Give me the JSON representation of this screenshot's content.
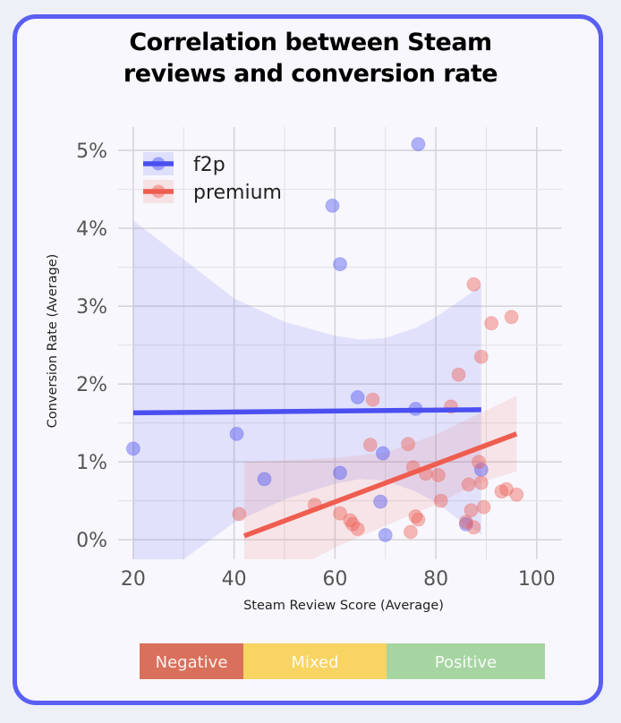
{
  "chart_data": {
    "type": "scatter",
    "title_lines": [
      "Correlation between Steam",
      "reviews and conversion rate"
    ],
    "xlabel": "Steam Review Score (Average)",
    "ylabel": "Conversion Rate (Average)",
    "xlim": [
      17,
      105
    ],
    "ylim": [
      -0.25,
      5.3
    ],
    "x_ticks": [
      20,
      40,
      60,
      80,
      100
    ],
    "x_tick_labels": [
      "20",
      "40",
      "60",
      "80",
      "100"
    ],
    "y_ticks": [
      0,
      1,
      2,
      3,
      4,
      5
    ],
    "y_tick_labels": [
      "0%",
      "1%",
      "2%",
      "3%",
      "4%",
      "5%"
    ],
    "grid": true,
    "legend": "top-left",
    "series": [
      {
        "name": "f2p",
        "color": "#4a4ff0",
        "points": [
          [
            20,
            1.17
          ],
          [
            40.5,
            1.36
          ],
          [
            46,
            0.78
          ],
          [
            59.5,
            4.29
          ],
          [
            61,
            3.54
          ],
          [
            61,
            0.86
          ],
          [
            64.5,
            1.83
          ],
          [
            69,
            0.49
          ],
          [
            69.5,
            1.11
          ],
          [
            70,
            0.06
          ],
          [
            76,
            1.68
          ],
          [
            76.5,
            5.08
          ],
          [
            86,
            0.2
          ],
          [
            89,
            0.9
          ]
        ],
        "trend": {
          "x": [
            20,
            89
          ],
          "y": [
            1.63,
            1.67
          ]
        },
        "band": {
          "x": [
            20,
            30,
            40,
            50,
            60,
            65,
            70,
            76,
            80,
            85,
            89
          ],
          "upper": [
            4.1,
            3.6,
            3.1,
            2.8,
            2.62,
            2.57,
            2.59,
            2.72,
            2.86,
            3.08,
            3.27
          ],
          "lower": [
            -0.8,
            -0.25,
            0.22,
            0.52,
            0.72,
            0.78,
            0.76,
            0.62,
            0.48,
            0.24,
            0.07
          ]
        }
      },
      {
        "name": "premium",
        "color": "#ee5d50",
        "points": [
          [
            41,
            0.33
          ],
          [
            56,
            0.45
          ],
          [
            61,
            0.34
          ],
          [
            63,
            0.25
          ],
          [
            63.5,
            0.2
          ],
          [
            64.5,
            0.14
          ],
          [
            67,
            1.22
          ],
          [
            67.5,
            1.8
          ],
          [
            74.5,
            1.23
          ],
          [
            75,
            0.1
          ],
          [
            75.5,
            0.93
          ],
          [
            76,
            0.3
          ],
          [
            76.5,
            0.26
          ],
          [
            78,
            0.85
          ],
          [
            80.5,
            0.83
          ],
          [
            81,
            0.5
          ],
          [
            83,
            1.71
          ],
          [
            84.5,
            2.12
          ],
          [
            86,
            0.23
          ],
          [
            86.5,
            0.71
          ],
          [
            87,
            0.38
          ],
          [
            87.5,
            0.16
          ],
          [
            87.5,
            3.28
          ],
          [
            88.5,
            1.0
          ],
          [
            89,
            0.73
          ],
          [
            89,
            2.35
          ],
          [
            89.5,
            0.42
          ],
          [
            91,
            2.78
          ],
          [
            93,
            0.62
          ],
          [
            94,
            0.65
          ],
          [
            95,
            2.86
          ],
          [
            96,
            0.58
          ]
        ],
        "trend": {
          "x": [
            42,
            96
          ],
          "y": [
            0.05,
            1.36
          ]
        },
        "band": {
          "x": [
            42,
            50,
            60,
            70,
            80,
            88,
            96
          ],
          "upper": [
            1.0,
            1.02,
            1.05,
            1.12,
            1.35,
            1.6,
            1.85
          ],
          "lower": [
            -0.9,
            -0.45,
            -0.1,
            0.18,
            0.45,
            0.72,
            0.88
          ]
        }
      }
    ],
    "review_scale": [
      {
        "label": "Negative",
        "color": "#d9705c"
      },
      {
        "label": "Mixed",
        "color": "#f8d462"
      },
      {
        "label": "Positive",
        "color": "#a6d5a2"
      }
    ]
  }
}
